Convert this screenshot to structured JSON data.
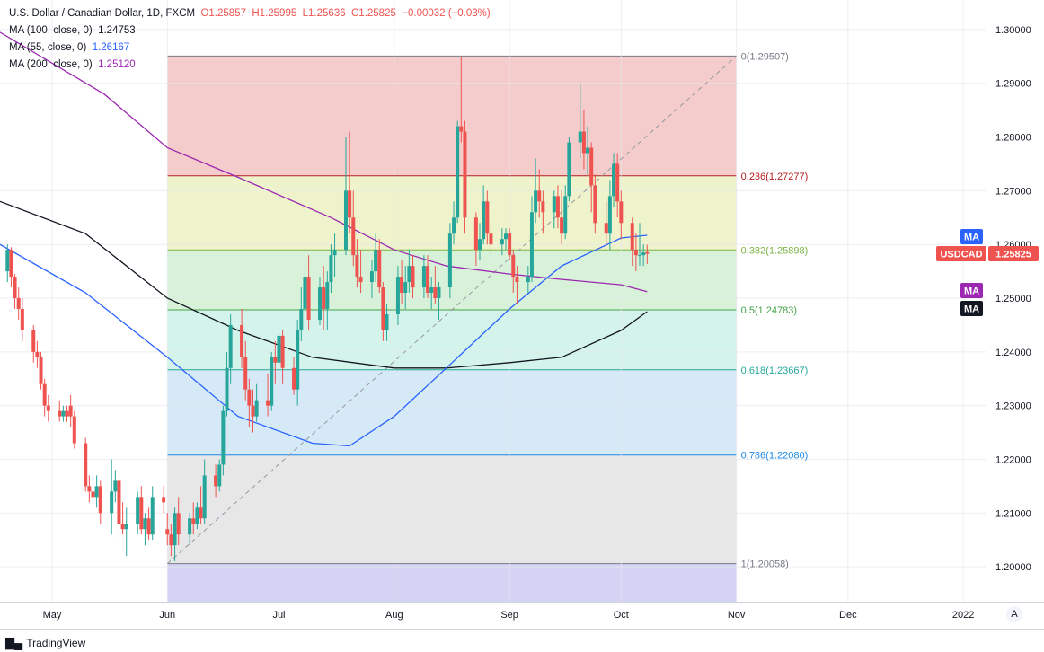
{
  "header": {
    "symbol": "U.S. Dollar / Canadian Dollar, 1D, FXCM",
    "ohlc": {
      "o": "O1.25857",
      "h": "H1.25995",
      "l": "L1.25636",
      "c": "C1.25825",
      "chg": "−0.00032 (−0.03%)"
    },
    "ma100": {
      "label": "MA (100, close, 0)",
      "value": "1.24753",
      "color": "#131722"
    },
    "ma55": {
      "label": "MA (55, close, 0)",
      "value": "1.26167",
      "color": "#2962ff"
    },
    "ma200": {
      "label": "MA (200, close, 0)",
      "value": "1.25120",
      "color": "#9c27b0"
    }
  },
  "badges": {
    "ma_label": "MA",
    "symbol": "USDCAD",
    "price": "1.25825"
  },
  "footer": {
    "logo_text": "TradingView",
    "auto_button": "A"
  },
  "chart_data": {
    "type": "candlestick",
    "y_range": [
      1.1935,
      1.3055
    ],
    "y_ticks": [
      "1.30000",
      "1.29000",
      "1.28000",
      "1.27000",
      "1.26000",
      "1.25000",
      "1.24000",
      "1.23000",
      "1.22000",
      "1.21000",
      "1.20000"
    ],
    "y_tick_values": [
      1.3,
      1.29,
      1.28,
      1.27,
      1.26,
      1.25,
      1.24,
      1.23,
      1.22,
      1.21,
      1.2
    ],
    "x_labels": [
      {
        "label": "May",
        "date": "2021-05-01"
      },
      {
        "label": "Jun",
        "date": "2021-06-01"
      },
      {
        "label": "Jul",
        "date": "2021-07-01"
      },
      {
        "label": "Aug",
        "date": "2021-08-01"
      },
      {
        "label": "Sep",
        "date": "2021-09-01"
      },
      {
        "label": "Oct",
        "date": "2021-10-01"
      },
      {
        "label": "Nov",
        "date": "2021-11-01"
      },
      {
        "label": "Dec",
        "date": "2021-12-01"
      },
      {
        "label": "2022",
        "date": "2022-01-01"
      }
    ],
    "x_domain": [
      "2021-04-17",
      "2022-01-07"
    ],
    "fib": {
      "start_date": "2021-06-01",
      "end_date": "2021-11-01",
      "levels": [
        {
          "label": "0(1.29507)",
          "value": 1.29507,
          "line": "#787b86",
          "fill": "#f4cccc"
        },
        {
          "label": "0.236(1.27277)",
          "value": 1.27277,
          "line": "#b71c1c",
          "fill": "#eef3cc"
        },
        {
          "label": "0.382(1.25898)",
          "value": 1.25898,
          "line": "#7cb342",
          "fill": "#d8f2d9"
        },
        {
          "label": "0.5(1.24783)",
          "value": 1.24783,
          "line": "#43a047",
          "fill": "#d4f3ea"
        },
        {
          "label": "0.618(1.23667)",
          "value": 1.23667,
          "line": "#26a69a",
          "fill": "#d5e9f6"
        },
        {
          "label": "0.786(1.22080)",
          "value": 1.2208,
          "line": "#1e88e5",
          "fill": "#e7e7e7"
        },
        {
          "label": "1(1.20058)",
          "value": 1.20058,
          "line": "#787b86",
          "fill": "#d4d3f4"
        }
      ],
      "bottom_value": 1.1935,
      "trend_line": {
        "from": [
          "2021-06-01",
          1.20058
        ],
        "to": [
          "2021-11-01",
          1.29507
        ]
      }
    },
    "ma_series": [
      {
        "name": "MA 200",
        "color": "#9c27b0",
        "points": [
          [
            "2021-04-17",
            1.2995
          ],
          [
            "2021-05-15",
            1.288
          ],
          [
            "2021-06-01",
            1.278
          ],
          [
            "2021-06-20",
            1.2725
          ],
          [
            "2021-07-15",
            1.265
          ],
          [
            "2021-08-01",
            1.259
          ],
          [
            "2021-08-15",
            1.256
          ],
          [
            "2021-09-01",
            1.2545
          ],
          [
            "2021-09-15",
            1.2535
          ],
          [
            "2021-10-01",
            1.2525
          ],
          [
            "2021-10-08",
            1.2512
          ]
        ]
      },
      {
        "name": "MA 100",
        "color": "#131722",
        "points": [
          [
            "2021-04-17",
            1.268
          ],
          [
            "2021-05-10",
            1.262
          ],
          [
            "2021-06-01",
            1.25
          ],
          [
            "2021-06-20",
            1.244
          ],
          [
            "2021-07-10",
            1.239
          ],
          [
            "2021-08-01",
            1.237
          ],
          [
            "2021-08-15",
            1.237
          ],
          [
            "2021-09-01",
            1.238
          ],
          [
            "2021-09-15",
            1.239
          ],
          [
            "2021-10-01",
            1.244
          ],
          [
            "2021-10-08",
            1.2475
          ]
        ]
      },
      {
        "name": "MA 55",
        "color": "#2962ff",
        "points": [
          [
            "2021-04-17",
            1.26
          ],
          [
            "2021-05-10",
            1.251
          ],
          [
            "2021-06-01",
            1.239
          ],
          [
            "2021-06-20",
            1.228
          ],
          [
            "2021-07-10",
            1.223
          ],
          [
            "2021-07-20",
            1.2225
          ],
          [
            "2021-08-01",
            1.228
          ],
          [
            "2021-08-15",
            1.237
          ],
          [
            "2021-09-01",
            1.248
          ],
          [
            "2021-09-15",
            1.256
          ],
          [
            "2021-10-01",
            1.2612
          ],
          [
            "2021-10-08",
            1.2617
          ]
        ]
      }
    ],
    "candles": [
      [
        "2021-04-19",
        1.255,
        1.26,
        1.253,
        1.259
      ],
      [
        "2021-04-20",
        1.259,
        1.2595,
        1.252,
        1.254
      ],
      [
        "2021-04-21",
        1.254,
        1.2545,
        1.248,
        1.25
      ],
      [
        "2021-04-22",
        1.25,
        1.252,
        1.246,
        1.248
      ],
      [
        "2021-04-23",
        1.248,
        1.25,
        1.242,
        1.244
      ],
      [
        "2021-04-26",
        1.244,
        1.245,
        1.238,
        1.24
      ],
      [
        "2021-04-27",
        1.24,
        1.242,
        1.237,
        1.239
      ],
      [
        "2021-04-28",
        1.239,
        1.24,
        1.233,
        1.234
      ],
      [
        "2021-04-29",
        1.234,
        1.235,
        1.228,
        1.23
      ],
      [
        "2021-04-30",
        1.23,
        1.232,
        1.227,
        1.229
      ],
      [
        "2021-05-03",
        1.229,
        1.231,
        1.227,
        1.228
      ],
      [
        "2021-05-04",
        1.228,
        1.23,
        1.227,
        1.229
      ],
      [
        "2021-05-05",
        1.229,
        1.23,
        1.227,
        1.228
      ],
      [
        "2021-05-06",
        1.23,
        1.232,
        1.226,
        1.228
      ],
      [
        "2021-05-07",
        1.228,
        1.229,
        1.222,
        1.223
      ],
      [
        "2021-05-10",
        1.223,
        1.224,
        1.214,
        1.215
      ],
      [
        "2021-05-11",
        1.215,
        1.217,
        1.212,
        1.214
      ],
      [
        "2021-05-12",
        1.214,
        1.216,
        1.208,
        1.213
      ],
      [
        "2021-05-13",
        1.213,
        1.217,
        1.211,
        1.215
      ],
      [
        "2021-05-14",
        1.215,
        1.216,
        1.208,
        1.21
      ],
      [
        "2021-05-17",
        1.21,
        1.22,
        1.206,
        1.214
      ],
      [
        "2021-05-18",
        1.214,
        1.218,
        1.212,
        1.216
      ],
      [
        "2021-05-19",
        1.216,
        1.217,
        1.205,
        1.208
      ],
      [
        "2021-05-20",
        1.208,
        1.212,
        1.206,
        1.207
      ],
      [
        "2021-05-21",
        1.207,
        1.211,
        1.202,
        1.208
      ],
      [
        "2021-05-24",
        1.208,
        1.214,
        1.206,
        1.213
      ],
      [
        "2021-05-25",
        1.213,
        1.215,
        1.206,
        1.207
      ],
      [
        "2021-05-26",
        1.207,
        1.21,
        1.204,
        1.209
      ],
      [
        "2021-05-27",
        1.209,
        1.211,
        1.205,
        1.206
      ],
      [
        "2021-05-28",
        1.206,
        1.215,
        1.205,
        1.213
      ],
      [
        "2021-05-31",
        1.213,
        1.215,
        1.21,
        1.212
      ],
      [
        "2021-06-01",
        1.207,
        1.21,
        1.204,
        1.206
      ],
      [
        "2021-06-02",
        1.206,
        1.208,
        1.202,
        1.204
      ],
      [
        "2021-06-03",
        1.204,
        1.211,
        1.201,
        1.21
      ],
      [
        "2021-06-04",
        1.21,
        1.213,
        1.204,
        1.206
      ],
      [
        "2021-06-07",
        1.206,
        1.21,
        1.204,
        1.209
      ],
      [
        "2021-06-08",
        1.209,
        1.212,
        1.206,
        1.208
      ],
      [
        "2021-06-09",
        1.208,
        1.212,
        1.207,
        1.211
      ],
      [
        "2021-06-10",
        1.211,
        1.215,
        1.208,
        1.209
      ],
      [
        "2021-06-11",
        1.209,
        1.22,
        1.208,
        1.217
      ],
      [
        "2021-06-14",
        1.217,
        1.219,
        1.213,
        1.215
      ],
      [
        "2021-06-15",
        1.215,
        1.22,
        1.214,
        1.219
      ],
      [
        "2021-06-16",
        1.219,
        1.23,
        1.217,
        1.229
      ],
      [
        "2021-06-17",
        1.229,
        1.24,
        1.228,
        1.237
      ],
      [
        "2021-06-18",
        1.237,
        1.247,
        1.234,
        1.245
      ],
      [
        "2021-06-21",
        1.245,
        1.248,
        1.237,
        1.239
      ],
      [
        "2021-06-22",
        1.239,
        1.242,
        1.231,
        1.233
      ],
      [
        "2021-06-23",
        1.233,
        1.235,
        1.226,
        1.23
      ],
      [
        "2021-06-24",
        1.23,
        1.233,
        1.225,
        1.228
      ],
      [
        "2021-06-25",
        1.228,
        1.234,
        1.227,
        1.231
      ],
      [
        "2021-06-28",
        1.231,
        1.236,
        1.228,
        1.23
      ],
      [
        "2021-06-29",
        1.23,
        1.24,
        1.229,
        1.239
      ],
      [
        "2021-06-30",
        1.239,
        1.242,
        1.234,
        1.238
      ],
      [
        "2021-07-01",
        1.238,
        1.245,
        1.236,
        1.243
      ],
      [
        "2021-07-02",
        1.243,
        1.244,
        1.234,
        1.237
      ],
      [
        "2021-07-05",
        1.237,
        1.239,
        1.232,
        1.233
      ],
      [
        "2021-07-06",
        1.233,
        1.246,
        1.23,
        1.244
      ],
      [
        "2021-07-07",
        1.244,
        1.252,
        1.242,
        1.248
      ],
      [
        "2021-07-08",
        1.248,
        1.256,
        1.246,
        1.254
      ],
      [
        "2021-07-09",
        1.254,
        1.258,
        1.244,
        1.246
      ],
      [
        "2021-07-12",
        1.246,
        1.254,
        1.245,
        1.252
      ],
      [
        "2021-07-13",
        1.252,
        1.256,
        1.244,
        1.248
      ],
      [
        "2021-07-14",
        1.248,
        1.255,
        1.244,
        1.253
      ],
      [
        "2021-07-15",
        1.253,
        1.26,
        1.251,
        1.258
      ],
      [
        "2021-07-16",
        1.258,
        1.262,
        1.254,
        1.259
      ],
      [
        "2021-07-19",
        1.259,
        1.28,
        1.258,
        1.27
      ],
      [
        "2021-07-20",
        1.27,
        1.281,
        1.262,
        1.265
      ],
      [
        "2021-07-21",
        1.265,
        1.27,
        1.256,
        1.258
      ],
      [
        "2021-07-22",
        1.258,
        1.261,
        1.252,
        1.254
      ],
      [
        "2021-07-23",
        1.254,
        1.259,
        1.251,
        1.253
      ],
      [
        "2021-07-26",
        1.253,
        1.257,
        1.25,
        1.255
      ],
      [
        "2021-07-27",
        1.255,
        1.262,
        1.253,
        1.259
      ],
      [
        "2021-07-28",
        1.259,
        1.261,
        1.251,
        1.252
      ],
      [
        "2021-07-29",
        1.252,
        1.253,
        1.242,
        1.244
      ],
      [
        "2021-07-30",
        1.244,
        1.249,
        1.242,
        1.247
      ],
      [
        "2021-08-02",
        1.247,
        1.256,
        1.245,
        1.254
      ],
      [
        "2021-08-03",
        1.254,
        1.257,
        1.249,
        1.251
      ],
      [
        "2021-08-04",
        1.251,
        1.256,
        1.248,
        1.253
      ],
      [
        "2021-08-05",
        1.253,
        1.259,
        1.251,
        1.256
      ],
      [
        "2021-08-06",
        1.256,
        1.258,
        1.25,
        1.252
      ],
      [
        "2021-08-09",
        1.252,
        1.258,
        1.25,
        1.256
      ],
      [
        "2021-08-10",
        1.256,
        1.258,
        1.25,
        1.251
      ],
      [
        "2021-08-11",
        1.251,
        1.254,
        1.248,
        1.252
      ],
      [
        "2021-08-12",
        1.252,
        1.256,
        1.249,
        1.25
      ],
      [
        "2021-08-13",
        1.25,
        1.253,
        1.246,
        1.252
      ],
      [
        "2021-08-16",
        1.252,
        1.264,
        1.25,
        1.262
      ],
      [
        "2021-08-17",
        1.262,
        1.268,
        1.26,
        1.265
      ],
      [
        "2021-08-18",
        1.265,
        1.283,
        1.264,
        1.282
      ],
      [
        "2021-08-19",
        1.282,
        1.295,
        1.279,
        1.281
      ],
      [
        "2021-08-20",
        1.281,
        1.283,
        1.262,
        1.265
      ],
      [
        "2021-08-23",
        1.265,
        1.266,
        1.256,
        1.259
      ],
      [
        "2021-08-24",
        1.259,
        1.264,
        1.257,
        1.261
      ],
      [
        "2021-08-25",
        1.261,
        1.271,
        1.26,
        1.268
      ],
      [
        "2021-08-26",
        1.268,
        1.27,
        1.26,
        1.262
      ],
      [
        "2021-08-27",
        1.262,
        1.264,
        1.258,
        1.26
      ],
      [
        "2021-08-30",
        1.26,
        1.263,
        1.258,
        1.261
      ],
      [
        "2021-08-31",
        1.261,
        1.263,
        1.259,
        1.262
      ],
      [
        "2021-09-01",
        1.262,
        1.263,
        1.257,
        1.258
      ],
      [
        "2021-09-02",
        1.258,
        1.259,
        1.251,
        1.254
      ],
      [
        "2021-09-03",
        1.254,
        1.256,
        1.249,
        1.253
      ],
      [
        "2021-09-06",
        1.253,
        1.256,
        1.251,
        1.254
      ],
      [
        "2021-09-07",
        1.254,
        1.269,
        1.253,
        1.266
      ],
      [
        "2021-09-08",
        1.266,
        1.276,
        1.264,
        1.27
      ],
      [
        "2021-09-09",
        1.27,
        1.274,
        1.265,
        1.268
      ],
      [
        "2021-09-10",
        1.268,
        1.27,
        1.262,
        1.266
      ],
      [
        "2021-09-13",
        1.266,
        1.27,
        1.263,
        1.269
      ],
      [
        "2021-09-14",
        1.269,
        1.271,
        1.263,
        1.265
      ],
      [
        "2021-09-15",
        1.265,
        1.27,
        1.26,
        1.262
      ],
      [
        "2021-09-16",
        1.262,
        1.271,
        1.261,
        1.269
      ],
      [
        "2021-09-17",
        1.269,
        1.28,
        1.268,
        1.279
      ],
      [
        "2021-09-20",
        1.279,
        1.29,
        1.276,
        1.281
      ],
      [
        "2021-09-21",
        1.281,
        1.285,
        1.274,
        1.277
      ],
      [
        "2021-09-22",
        1.277,
        1.282,
        1.273,
        1.278
      ],
      [
        "2021-09-23",
        1.278,
        1.279,
        1.266,
        1.271
      ],
      [
        "2021-09-24",
        1.271,
        1.273,
        1.262,
        1.264
      ],
      [
        "2021-09-27",
        1.264,
        1.268,
        1.26,
        1.262
      ],
      [
        "2021-09-28",
        1.262,
        1.272,
        1.259,
        1.269
      ],
      [
        "2021-09-29",
        1.269,
        1.277,
        1.267,
        1.275
      ],
      [
        "2021-09-30",
        1.275,
        1.277,
        1.265,
        1.268
      ],
      [
        "2021-10-01",
        1.268,
        1.27,
        1.261,
        1.264
      ],
      [
        "2021-10-04",
        1.264,
        1.265,
        1.256,
        1.259
      ],
      [
        "2021-10-05",
        1.259,
        1.262,
        1.255,
        1.258
      ],
      [
        "2021-10-06",
        1.258,
        1.264,
        1.256,
        1.258
      ],
      [
        "2021-10-07",
        1.258,
        1.26,
        1.256,
        1.2585
      ],
      [
        "2021-10-08",
        1.25857,
        1.25995,
        1.25636,
        1.25825
      ]
    ]
  }
}
